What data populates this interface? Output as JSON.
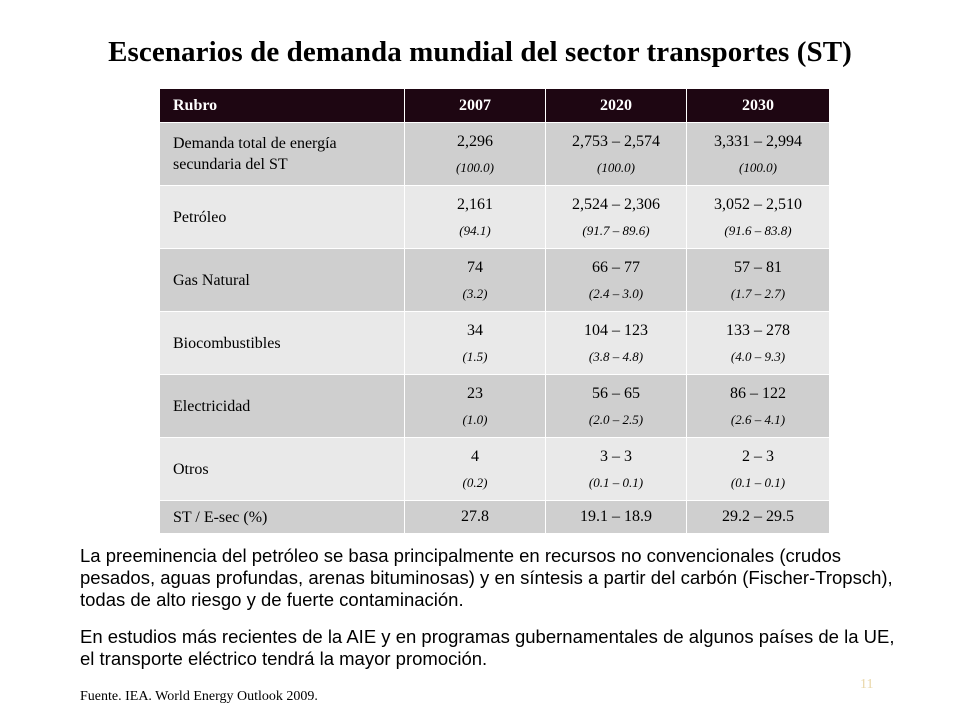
{
  "title": "Escenarios de demanda mundial del sector transportes (ST)",
  "table": {
    "headers": [
      "Rubro",
      "2007",
      "2020",
      "2030"
    ],
    "rows": [
      {
        "label": "Demanda total de energía secundaria del ST",
        "v2007": "2,296",
        "p2007": "(100.0)",
        "v2020": "2,753 – 2,574",
        "p2020": "(100.0)",
        "v2030": "3,331 – 2,994",
        "p2030": "(100.0)"
      },
      {
        "label": "Petróleo",
        "v2007": "2,161",
        "p2007": "(94.1)",
        "v2020": "2,524 – 2,306",
        "p2020": "(91.7 – 89.6)",
        "v2030": "3,052 – 2,510",
        "p2030": "(91.6 – 83.8)"
      },
      {
        "label": "Gas Natural",
        "v2007": "74",
        "p2007": "(3.2)",
        "v2020": "66 – 77",
        "p2020": "(2.4 – 3.0)",
        "v2030": "57 – 81",
        "p2030": "(1.7 – 2.7)"
      },
      {
        "label": "Biocombustibles",
        "v2007": "34",
        "p2007": "(1.5)",
        "v2020": "104 – 123",
        "p2020": "(3.8 – 4.8)",
        "v2030": "133 – 278",
        "p2030": "(4.0 – 9.3)"
      },
      {
        "label": "Electricidad",
        "v2007": "23",
        "p2007": "(1.0)",
        "v2020": "56 – 65",
        "p2020": "(2.0 – 2.5)",
        "v2030": "86 – 122",
        "p2030": "(2.6 – 4.1)"
      },
      {
        "label": "Otros",
        "v2007": "4",
        "p2007": "(0.2)",
        "v2020": "3 – 3",
        "p2020": "(0.1 – 0.1)",
        "v2030": "2 – 3",
        "p2030": "(0.1 – 0.1)"
      },
      {
        "label": "ST / E-sec  (%)",
        "v2007": "27.8",
        "v2020": "19.1 – 18.9",
        "v2030": "29.2 – 29.5"
      }
    ]
  },
  "paragraphs": [
    "La preeminencia del petróleo se basa principalmente en recursos no convencionales (crudos pesados, aguas profundas, arenas bituminosas) y en síntesis a partir del carbón (Fischer-Tropsch), todas de alto riesgo y de fuerte contaminación.",
    "En estudios más recientes de la AIE y en programas gubernamentales de algunos países de la UE, el transporte eléctrico tendrá la mayor promoción."
  ],
  "source": "Fuente. IEA. World Energy Outlook 2009.",
  "page_number": "11",
  "colors": {
    "header_bg": "#1e0612",
    "row_dark": "#cfcfcf",
    "row_light": "#e9e9e9",
    "page_number": "#e9d7a8"
  }
}
